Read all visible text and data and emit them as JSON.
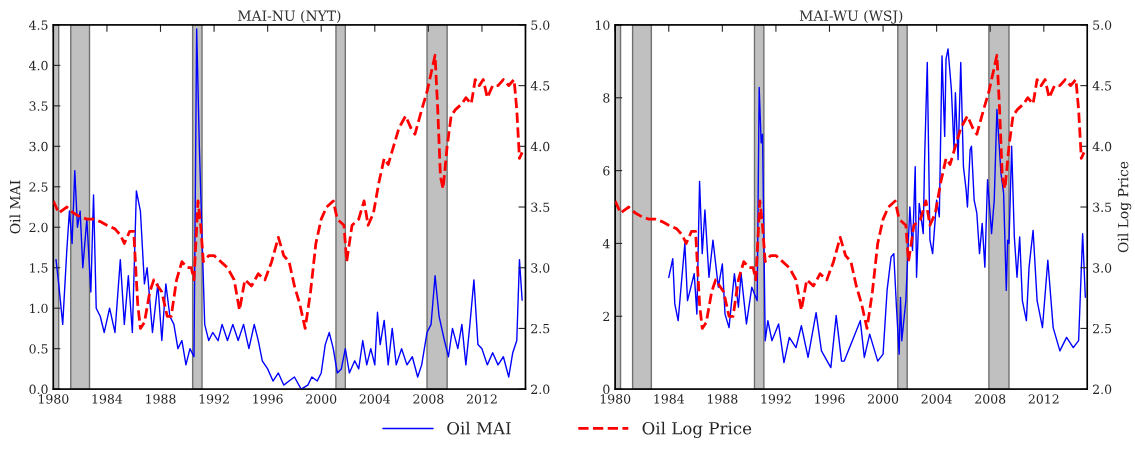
{
  "chart_data": [
    {
      "type": "line",
      "title": "MAI-NU (NYT)",
      "ylabel": "Oil MAI",
      "xlim": [
        1980,
        2015.25
      ],
      "xticks": [
        1980,
        1984,
        1988,
        1992,
        1996,
        2000,
        2004,
        2008,
        2012
      ],
      "ylim": [
        0,
        4.5
      ],
      "yticks": [
        {
          "value": 0,
          "label": "0.0"
        },
        {
          "value": 0.5,
          "label": "0.5"
        },
        {
          "value": 1,
          "label": "1.0"
        },
        {
          "value": 1.5,
          "label": "1.5"
        },
        {
          "value": 2,
          "label": "2.0"
        },
        {
          "value": 2.5,
          "label": "2.5"
        },
        {
          "value": 3,
          "label": "3.0"
        },
        {
          "value": 3.5,
          "label": "3.5"
        },
        {
          "value": 4,
          "label": "4.0"
        },
        {
          "value": 4.5,
          "label": "4.5"
        }
      ],
      "y2lim": [
        2,
        5
      ],
      "y2ticks": [
        {
          "value": 2,
          "label": "2.0"
        },
        {
          "value": 2.5,
          "label": "2.5"
        },
        {
          "value": 3,
          "label": "3.0"
        },
        {
          "value": 3.5,
          "label": "3.5"
        },
        {
          "value": 4,
          "label": "4.0"
        },
        {
          "value": 4.5,
          "label": "4.5"
        },
        {
          "value": 5,
          "label": "5.0"
        }
      ],
      "legend": "bottom",
      "grid": false,
      "bands": [
        {
          "axis": "x",
          "from": 1980.0,
          "to": 1980.4,
          "color": "#c0c0c0"
        },
        {
          "axis": "x",
          "from": 1981.3,
          "to": 1982.7,
          "color": "#c0c0c0"
        },
        {
          "axis": "x",
          "from": 1990.4,
          "to": 1991.1,
          "color": "#c0c0c0"
        },
        {
          "axis": "x",
          "from": 2001.1,
          "to": 2001.8,
          "color": "#c0c0c0"
        },
        {
          "axis": "x",
          "from": 2007.9,
          "to": 2009.4,
          "color": "#c0c0c0"
        }
      ],
      "series": [
        {
          "name": "Oil MAI",
          "color": "#0000ff",
          "line_style": "solid",
          "marker": "none",
          "x": [
            1980.2,
            1980.4,
            1980.7,
            1981.0,
            1981.2,
            1981.4,
            1981.6,
            1981.8,
            1982.0,
            1982.2,
            1982.5,
            1982.8,
            1983.0,
            1983.2,
            1983.5,
            1983.8,
            1984.2,
            1984.6,
            1985.0,
            1985.3,
            1985.6,
            1985.9,
            1986.2,
            1986.5,
            1986.8,
            1987.0,
            1987.4,
            1987.8,
            1988.1,
            1988.4,
            1988.7,
            1989.0,
            1989.3,
            1989.6,
            1989.9,
            1990.2,
            1990.5,
            1990.7,
            1990.9,
            1991.1,
            1991.3,
            1991.6,
            1991.9,
            1992.3,
            1992.6,
            1993.0,
            1993.4,
            1993.8,
            1994.2,
            1994.6,
            1995.0,
            1995.3,
            1995.6,
            1996.0,
            1996.4,
            1996.8,
            1997.2,
            1997.6,
            1998.0,
            1998.5,
            1999.0,
            1999.3,
            1999.7,
            2000.0,
            2000.3,
            2000.6,
            2000.9,
            2001.2,
            2001.5,
            2001.8,
            2002.1,
            2002.5,
            2002.8,
            2003.1,
            2003.4,
            2003.7,
            2004.0,
            2004.2,
            2004.4,
            2004.7,
            2005.0,
            2005.3,
            2005.6,
            2006.0,
            2006.4,
            2006.8,
            2007.2,
            2007.5,
            2007.9,
            2008.2,
            2008.5,
            2008.8,
            2009.2,
            2009.5,
            2009.8,
            2010.2,
            2010.5,
            2010.8,
            2011.1,
            2011.4,
            2011.7,
            2012.0,
            2012.4,
            2012.8,
            2013.2,
            2013.6,
            2014.0,
            2014.3,
            2014.6,
            2014.8,
            2015.0
          ],
          "values": [
            1.6,
            1.3,
            0.8,
            1.7,
            2.2,
            1.8,
            2.7,
            2.0,
            2.2,
            1.5,
            2.1,
            1.2,
            2.4,
            1.0,
            0.9,
            0.7,
            1.0,
            0.7,
            1.6,
            0.8,
            1.4,
            0.7,
            2.45,
            2.2,
            1.3,
            1.5,
            0.7,
            1.3,
            0.6,
            1.3,
            0.9,
            0.8,
            0.5,
            0.6,
            0.3,
            0.5,
            0.4,
            4.45,
            3.0,
            1.9,
            0.8,
            0.6,
            0.7,
            0.6,
            0.8,
            0.6,
            0.8,
            0.6,
            0.8,
            0.5,
            0.8,
            0.6,
            0.35,
            0.25,
            0.1,
            0.2,
            0.05,
            0.1,
            0.15,
            0.0,
            0.05,
            0.15,
            0.1,
            0.2,
            0.55,
            0.7,
            0.5,
            0.2,
            0.25,
            0.5,
            0.2,
            0.35,
            0.25,
            0.6,
            0.3,
            0.5,
            0.3,
            0.95,
            0.55,
            0.85,
            0.3,
            0.75,
            0.3,
            0.5,
            0.3,
            0.4,
            0.15,
            0.3,
            0.7,
            0.8,
            1.4,
            0.9,
            0.6,
            0.4,
            0.75,
            0.5,
            0.8,
            0.3,
            0.8,
            1.35,
            0.55,
            0.5,
            0.3,
            0.45,
            0.3,
            0.4,
            0.15,
            0.45,
            0.6,
            1.6,
            1.1
          ]
        },
        {
          "name": "Oil Log Price",
          "color": "#ff0000",
          "line_style": "dashed",
          "marker": "none",
          "axis": "y2",
          "x": [
            1980.0,
            1980.4,
            1981.0,
            1981.5,
            1982.0,
            1982.5,
            1983.0,
            1983.5,
            1984.0,
            1984.6,
            1985.0,
            1985.3,
            1985.7,
            1986.0,
            1986.3,
            1986.5,
            1986.8,
            1987.2,
            1987.5,
            1987.8,
            1988.1,
            1988.5,
            1988.8,
            1989.2,
            1989.6,
            1990.0,
            1990.3,
            1990.5,
            1990.8,
            1991.0,
            1991.2,
            1991.6,
            1992.0,
            1992.5,
            1993.0,
            1993.5,
            1993.9,
            1994.3,
            1994.8,
            1995.3,
            1995.8,
            1996.3,
            1996.8,
            1997.2,
            1997.6,
            1998.0,
            1998.4,
            1998.8,
            1999.2,
            1999.6,
            2000.0,
            2000.4,
            2000.9,
            2001.2,
            2001.7,
            2001.9,
            2002.3,
            2002.8,
            2003.2,
            2003.5,
            2003.9,
            2004.3,
            2004.7,
            2005.0,
            2005.4,
            2005.8,
            2006.3,
            2006.7,
            2007.0,
            2007.5,
            2007.9,
            2008.2,
            2008.5,
            2008.7,
            2008.9,
            2009.1,
            2009.4,
            2009.7,
            2010.0,
            2010.5,
            2010.8,
            2011.2,
            2011.5,
            2011.8,
            2012.1,
            2012.4,
            2012.8,
            2013.2,
            2013.6,
            2014.0,
            2014.4,
            2014.6,
            2014.8,
            2015.0
          ],
          "values": [
            3.55,
            3.45,
            3.5,
            3.45,
            3.42,
            3.4,
            3.4,
            3.38,
            3.35,
            3.32,
            3.27,
            3.2,
            3.3,
            3.3,
            2.7,
            2.5,
            2.55,
            2.8,
            2.9,
            2.85,
            2.8,
            2.6,
            2.6,
            2.9,
            3.05,
            3.0,
            3.0,
            2.9,
            3.55,
            3.35,
            3.05,
            3.1,
            3.1,
            3.05,
            3.0,
            2.9,
            2.65,
            2.9,
            2.85,
            2.95,
            2.9,
            3.05,
            3.25,
            3.1,
            3.05,
            2.85,
            2.7,
            2.5,
            2.8,
            3.2,
            3.4,
            3.5,
            3.55,
            3.4,
            3.35,
            3.05,
            3.35,
            3.4,
            3.55,
            3.35,
            3.45,
            3.7,
            3.9,
            3.85,
            4.0,
            4.15,
            4.25,
            4.15,
            4.1,
            4.3,
            4.45,
            4.6,
            4.75,
            4.3,
            3.75,
            3.65,
            4.0,
            4.25,
            4.3,
            4.35,
            4.4,
            4.35,
            4.55,
            4.5,
            4.55,
            4.4,
            4.5,
            4.5,
            4.55,
            4.5,
            4.55,
            4.3,
            3.9,
            3.95
          ]
        }
      ]
    },
    {
      "type": "line",
      "title": "MAI-WU (WSJ)",
      "y2label": "Oil Log Price",
      "xlim": [
        1980,
        2015.25
      ],
      "xticks": [
        1980,
        1984,
        1988,
        1992,
        1996,
        2000,
        2004,
        2008,
        2012
      ],
      "ylim": [
        0,
        10
      ],
      "yticks": [
        0,
        2,
        4,
        6,
        8,
        10
      ],
      "y2lim": [
        2,
        5
      ],
      "y2ticks": [
        {
          "value": 2,
          "label": "2.0"
        },
        {
          "value": 2.5,
          "label": "2.5"
        },
        {
          "value": 3,
          "label": "3.0"
        },
        {
          "value": 3.5,
          "label": "3.5"
        },
        {
          "value": 4,
          "label": "4.0"
        },
        {
          "value": 4.5,
          "label": "4.5"
        },
        {
          "value": 5,
          "label": "5.0"
        }
      ],
      "grid": false,
      "bands": [
        {
          "axis": "x",
          "from": 1980.0,
          "to": 1980.4,
          "color": "#c0c0c0"
        },
        {
          "axis": "x",
          "from": 1981.3,
          "to": 1982.7,
          "color": "#c0c0c0"
        },
        {
          "axis": "x",
          "from": 1990.4,
          "to": 1991.1,
          "color": "#c0c0c0"
        },
        {
          "axis": "x",
          "from": 2001.1,
          "to": 2001.8,
          "color": "#c0c0c0"
        },
        {
          "axis": "x",
          "from": 2007.9,
          "to": 2009.4,
          "color": "#c0c0c0"
        }
      ],
      "series": [
        {
          "color": "#0000ff",
          "line_style": "solid",
          "marker": "none",
          "x": [
            1984.0,
            1984.3,
            1984.45,
            1984.7,
            1985.2,
            1985.4,
            1985.9,
            1986.1,
            1986.3,
            1986.5,
            1986.7,
            1987.0,
            1987.3,
            1987.7,
            1988.0,
            1988.2,
            1988.5,
            1988.9,
            1989.2,
            1989.4,
            1989.8,
            1990.2,
            1990.6,
            1990.75,
            1990.9,
            1991.0,
            1991.2,
            1991.4,
            1991.7,
            1992.2,
            1992.6,
            1993.0,
            1993.5,
            1993.9,
            1994.4,
            1995.0,
            1995.4,
            1996.1,
            1996.5,
            1996.9,
            1997.1,
            1997.6,
            1998.3,
            1998.6,
            1999.0,
            1999.6,
            2000.0,
            2000.3,
            2000.6,
            2000.8,
            2001.0,
            2001.2,
            2001.3,
            2001.4,
            2001.7,
            2002.0,
            2002.2,
            2002.4,
            2002.5,
            2002.7,
            2003.0,
            2003.1,
            2003.3,
            2003.5,
            2003.7,
            2004.0,
            2004.2,
            2004.4,
            2004.6,
            2004.7,
            2004.85,
            2005.1,
            2005.3,
            2005.4,
            2005.6,
            2005.8,
            2006.0,
            2006.2,
            2006.3,
            2006.5,
            2006.6,
            2006.8,
            2007.0,
            2007.2,
            2007.4,
            2007.6,
            2007.8,
            2008.1,
            2008.3,
            2008.5,
            2008.8,
            2009.0,
            2009.2,
            2009.3,
            2009.4,
            2009.6,
            2009.8,
            2010.0,
            2010.2,
            2010.4,
            2010.7,
            2010.9,
            2011.2,
            2011.5,
            2011.9,
            2012.3,
            2012.7,
            2013.2,
            2013.7,
            2014.2,
            2014.6,
            2014.9,
            2015.1
          ],
          "values": [
            3.07,
            3.58,
            2.34,
            1.88,
            4.0,
            2.43,
            3.17,
            2.06,
            5.7,
            3.72,
            4.92,
            3.07,
            4.09,
            2.8,
            3.44,
            2.06,
            1.69,
            3.17,
            2.25,
            3.17,
            1.79,
            2.8,
            2.43,
            8.28,
            6.76,
            7.0,
            1.33,
            1.88,
            1.33,
            1.79,
            0.73,
            1.42,
            1.14,
            1.74,
            0.87,
            2.1,
            1.05,
            0.59,
            2.02,
            0.77,
            0.77,
            1.23,
            1.88,
            0.87,
            1.51,
            0.77,
            0.96,
            2.71,
            3.63,
            3.72,
            2.25,
            0.96,
            2.52,
            1.33,
            2.43,
            5.0,
            3.81,
            6.11,
            3.07,
            5.1,
            4.27,
            6.3,
            8.97,
            4.09,
            3.72,
            5.19,
            4.73,
            9.15,
            6.94,
            9.06,
            9.34,
            8.23,
            6.57,
            8.14,
            6.3,
            8.97,
            6.11,
            5.47,
            5.0,
            6.57,
            6.67,
            5.19,
            4.83,
            3.72,
            4.55,
            3.35,
            5.75,
            4.27,
            5.19,
            7.68,
            5.93,
            5.38,
            2.71,
            4.09,
            4.0,
            6.67,
            4.18,
            3.07,
            4.18,
            2.43,
            1.88,
            3.35,
            4.36,
            2.43,
            1.69,
            3.54,
            1.69,
            1.05,
            1.42,
            1.14,
            1.33,
            4.27,
            2.52
          ]
        },
        {
          "color": "#ff0000",
          "line_style": "dashed",
          "marker": "none",
          "axis": "y2",
          "x": [
            1980.0,
            1980.4,
            1981.0,
            1981.5,
            1982.0,
            1982.5,
            1983.0,
            1983.5,
            1984.0,
            1984.6,
            1985.0,
            1985.3,
            1985.7,
            1986.0,
            1986.3,
            1986.5,
            1986.8,
            1987.2,
            1987.5,
            1987.8,
            1988.1,
            1988.5,
            1988.8,
            1989.2,
            1989.6,
            1990.0,
            1990.3,
            1990.5,
            1990.8,
            1991.0,
            1991.2,
            1991.6,
            1992.0,
            1992.5,
            1993.0,
            1993.5,
            1993.9,
            1994.3,
            1994.8,
            1995.3,
            1995.8,
            1996.3,
            1996.8,
            1997.2,
            1997.6,
            1998.0,
            1998.4,
            1998.8,
            1999.2,
            1999.6,
            2000.0,
            2000.4,
            2000.9,
            2001.2,
            2001.7,
            2001.9,
            2002.3,
            2002.8,
            2003.2,
            2003.5,
            2003.9,
            2004.3,
            2004.7,
            2005.0,
            2005.4,
            2005.8,
            2006.3,
            2006.7,
            2007.0,
            2007.5,
            2007.9,
            2008.2,
            2008.5,
            2008.7,
            2008.9,
            2009.1,
            2009.4,
            2009.7,
            2010.0,
            2010.5,
            2010.8,
            2011.2,
            2011.5,
            2011.8,
            2012.1,
            2012.4,
            2012.8,
            2013.2,
            2013.6,
            2014.0,
            2014.4,
            2014.6,
            2014.8,
            2015.0
          ],
          "values": [
            3.55,
            3.45,
            3.5,
            3.45,
            3.42,
            3.4,
            3.4,
            3.38,
            3.35,
            3.32,
            3.27,
            3.2,
            3.3,
            3.3,
            2.7,
            2.5,
            2.55,
            2.8,
            2.9,
            2.85,
            2.8,
            2.6,
            2.6,
            2.9,
            3.05,
            3.0,
            3.0,
            2.9,
            3.55,
            3.35,
            3.05,
            3.1,
            3.1,
            3.05,
            3.0,
            2.9,
            2.65,
            2.9,
            2.85,
            2.95,
            2.9,
            3.05,
            3.25,
            3.1,
            3.05,
            2.85,
            2.7,
            2.5,
            2.8,
            3.2,
            3.4,
            3.5,
            3.55,
            3.4,
            3.35,
            3.05,
            3.35,
            3.4,
            3.55,
            3.35,
            3.45,
            3.7,
            3.9,
            3.85,
            4.0,
            4.15,
            4.25,
            4.15,
            4.1,
            4.3,
            4.45,
            4.6,
            4.75,
            4.3,
            3.75,
            3.65,
            4.0,
            4.25,
            4.3,
            4.35,
            4.4,
            4.35,
            4.55,
            4.5,
            4.55,
            4.4,
            4.5,
            4.5,
            4.55,
            4.5,
            4.55,
            4.3,
            3.9,
            3.95
          ]
        }
      ]
    }
  ]
}
